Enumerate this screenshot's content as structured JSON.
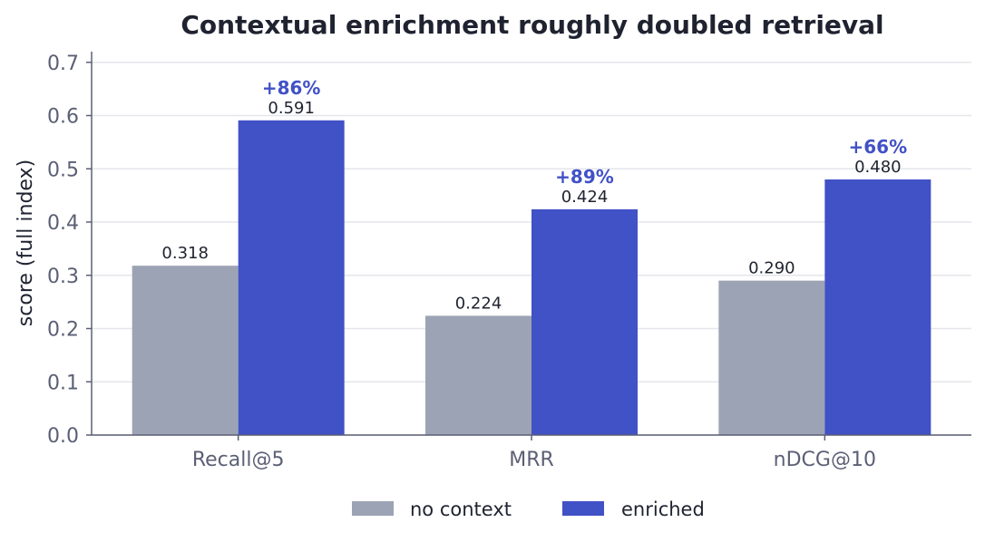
{
  "chart_data": {
    "type": "bar",
    "title": "Contextual enrichment roughly doubled retrieval",
    "xlabel": "",
    "ylabel": "score (full index)",
    "categories": [
      "Recall@5",
      "MRR",
      "nDCG@10"
    ],
    "series": [
      {
        "name": "no context",
        "values": [
          0.318,
          0.224,
          0.29
        ],
        "labels": [
          "0.318",
          "0.224",
          "0.290"
        ],
        "color": "#9ca3b4"
      },
      {
        "name": "enriched",
        "values": [
          0.591,
          0.424,
          0.48
        ],
        "labels": [
          "0.591",
          "0.424",
          "0.480"
        ],
        "color": "#4151c6"
      }
    ],
    "annotations": [
      "+86%",
      "+89%",
      "+66%"
    ],
    "annotation_color": "#4151c6",
    "ylim": [
      0,
      0.72
    ],
    "yticks": [
      "0.0",
      "0.1",
      "0.2",
      "0.3",
      "0.4",
      "0.5",
      "0.6",
      "0.7"
    ],
    "grid": true,
    "legend": "bottom"
  }
}
